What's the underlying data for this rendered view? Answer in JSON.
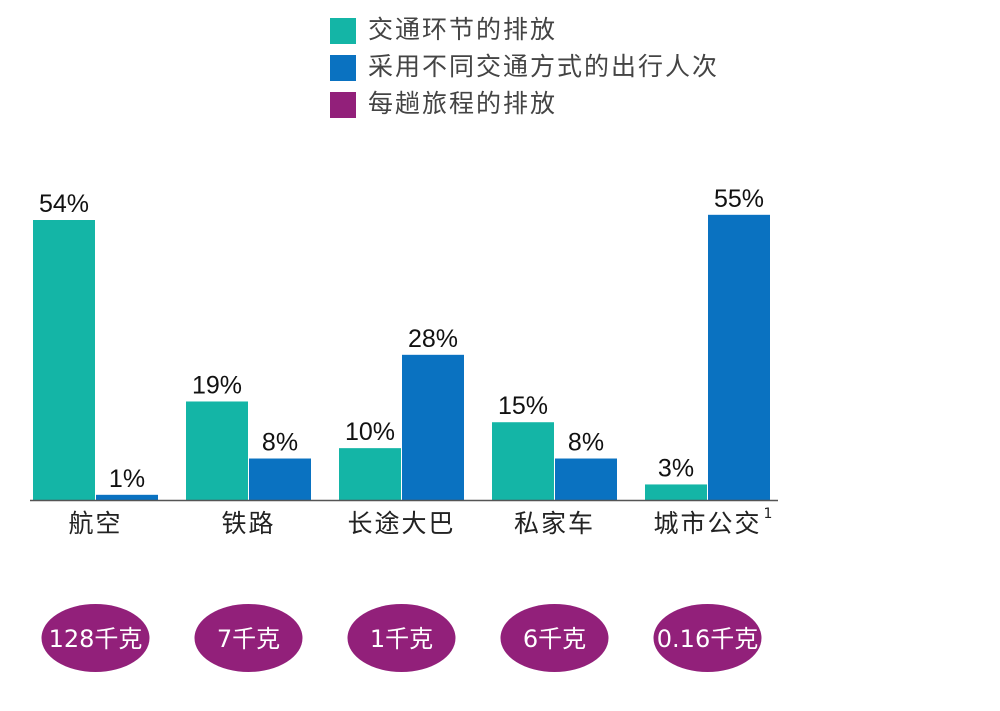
{
  "colors": {
    "transport_emission": "#14b5a6",
    "trips": "#0a72c1",
    "per_trip": "#92207a",
    "axis": "#555555"
  },
  "legend": [
    {
      "label": "交通环节的排放",
      "color": "#14b5a6"
    },
    {
      "label": "采用不同交通方式的出行人次",
      "color": "#0a72c1"
    },
    {
      "label": "每趟旅程的排放",
      "color": "#92207a"
    }
  ],
  "chart_data": {
    "type": "bar",
    "categories": [
      "航空",
      "铁路",
      "长途大巴",
      "私家车",
      "城市公交"
    ],
    "category_superscripts": [
      "",
      "",
      "",
      "",
      "1"
    ],
    "series": [
      {
        "name": "交通环节的排放",
        "values": [
          54,
          19,
          10,
          15,
          3
        ],
        "labels": [
          "54%",
          "19%",
          "10%",
          "15%",
          "3%"
        ]
      },
      {
        "name": "采用不同交通方式的出行人次",
        "values": [
          1,
          8,
          28,
          8,
          55
        ],
        "labels": [
          "1%",
          "8%",
          "28%",
          "8%",
          "55%"
        ]
      }
    ],
    "per_trip_emissions": {
      "name": "每趟旅程的排放",
      "labels": [
        "128千克",
        "7千克",
        "1千克",
        "6千克",
        "0.16千克"
      ]
    },
    "ylim": [
      0,
      60
    ],
    "grid": false
  }
}
